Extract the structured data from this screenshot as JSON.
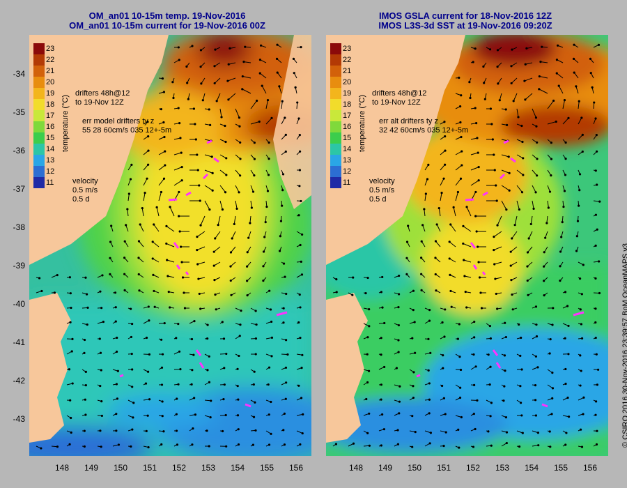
{
  "left_panel": {
    "title_line1": "OM_an01 10-15m temp. 19-Nov-2016",
    "title_line2": "OM_an01 10-15m current for 19-Nov-2016 00Z",
    "drifters_line1": "drifters 48h@12",
    "drifters_line2": "to 19-Nov 12Z",
    "err_line1": "err model drifters ty z",
    "err_line2": "55 28 60cm/s 035 12+-5m",
    "velocity_label": "velocity",
    "velocity_scale": "0.5 m/s",
    "velocity_days": "0.5 d"
  },
  "right_panel": {
    "title_line1": "IMOS GSLA current for 18-Nov-2016 12Z",
    "title_line2": "IMOS L3S-3d SST at 19-Nov-2016 09:20Z",
    "drifters_line1": "drifters 48h@12",
    "drifters_line2": "to 19-Nov 12Z",
    "err_line1": "err alt drifters ty z",
    "err_line2": "32 42 60cm/s 035 12+-5m",
    "velocity_label": "velocity",
    "velocity_scale": "0.5 m/s",
    "velocity_days": "0.5 d"
  },
  "colorbar": {
    "title": "temperature (°C)",
    "labels": [
      "23",
      "22",
      "21",
      "20",
      "19",
      "18",
      "17",
      "16",
      "15",
      "14",
      "13",
      "12",
      "11"
    ],
    "colors": [
      "#8b0a0a",
      "#b33a05",
      "#d2610a",
      "#e88d0f",
      "#f3b51c",
      "#f2dc2b",
      "#c9e83a",
      "#7fd93b",
      "#3ccd4c",
      "#2cc6a6",
      "#2aa6e6",
      "#2c6ed3",
      "#1f2aa6"
    ]
  },
  "axes": {
    "lat_ticks": [
      "-34",
      "-35",
      "-36",
      "-37",
      "-38",
      "-39",
      "-40",
      "-41",
      "-42",
      "-43"
    ],
    "lon_ticks": [
      "148",
      "149",
      "150",
      "151",
      "152",
      "153",
      "154",
      "155",
      "156"
    ]
  },
  "colors": {
    "land": "#f7c79b",
    "background": "#b7b7b7",
    "title": "#00008b",
    "drifter": "#ff33ff"
  },
  "credit": "© CSIRO 2016   30-Nov-2016 23:39:57 BoM OceanMAPS v3"
}
